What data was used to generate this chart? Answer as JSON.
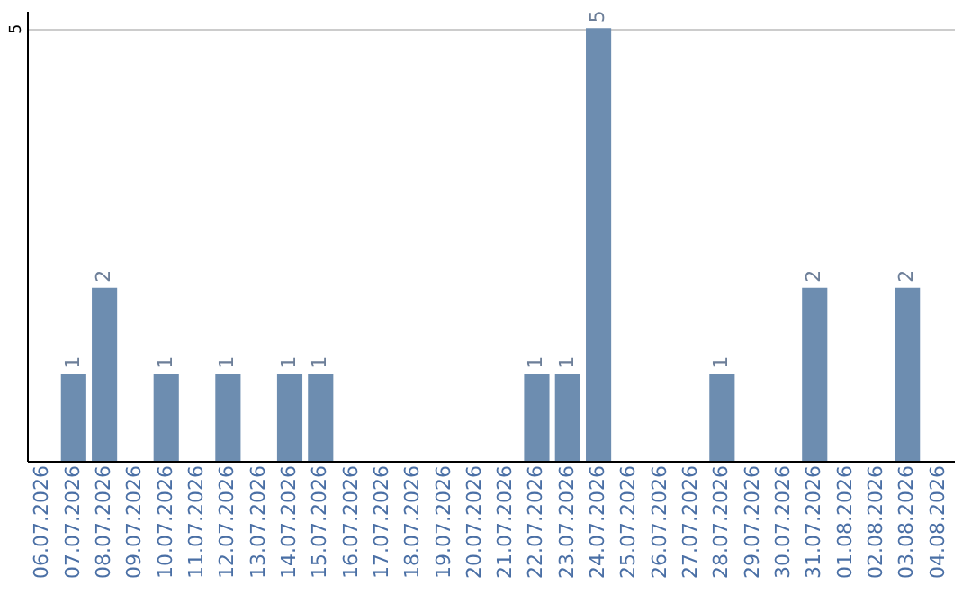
{
  "chart_data": {
    "type": "bar",
    "categories": [
      "06.07.2026",
      "07.07.2026",
      "08.07.2026",
      "09.07.2026",
      "10.07.2026",
      "11.07.2026",
      "12.07.2026",
      "13.07.2026",
      "14.07.2026",
      "15.07.2026",
      "16.07.2026",
      "17.07.2026",
      "18.07.2026",
      "19.07.2026",
      "20.07.2026",
      "21.07.2026",
      "22.07.2026",
      "23.07.2026",
      "24.07.2026",
      "25.07.2026",
      "26.07.2026",
      "27.07.2026",
      "28.07.2026",
      "29.07.2026",
      "30.07.2026",
      "31.07.2026",
      "01.08.2026",
      "02.08.2026",
      "03.08.2026",
      "04.08.2026"
    ],
    "values": [
      0,
      1,
      2,
      0,
      1,
      0,
      1,
      0,
      1,
      1,
      0,
      0,
      0,
      0,
      0,
      0,
      1,
      1,
      5,
      0,
      0,
      0,
      1,
      0,
      0,
      2,
      0,
      0,
      2,
      0
    ],
    "value_labels": [
      null,
      "1",
      "2",
      null,
      "1",
      null,
      "1",
      null,
      "1",
      "1",
      null,
      null,
      null,
      null,
      null,
      null,
      "1",
      "1",
      "5",
      null,
      null,
      null,
      "1",
      null,
      null,
      "2",
      null,
      null,
      "2",
      null
    ],
    "color": "#6d8db0",
    "ylim": [
      0,
      5.2
    ],
    "yticks": [
      5
    ],
    "grid": "y"
  }
}
